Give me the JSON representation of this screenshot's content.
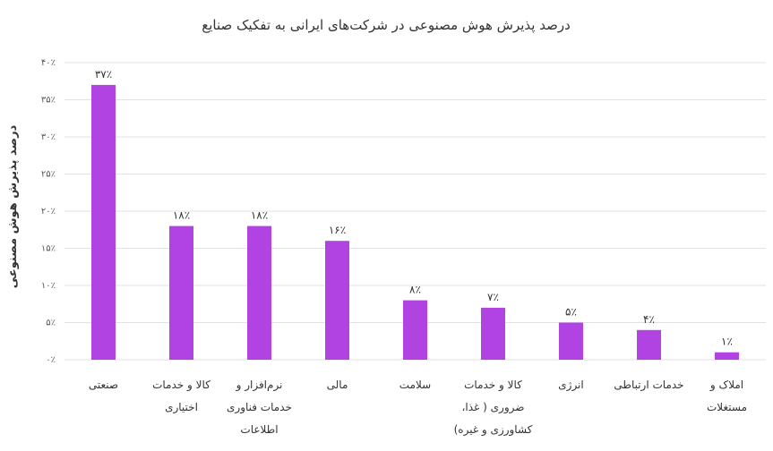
{
  "chart_data": {
    "type": "bar",
    "title": "درصد پذیرش هوش مصنوعی در شرکت‌های ایرانی به تفکیک صنایع",
    "xlabel": "",
    "ylabel": "درصد پذیرش هوش مصنوعی",
    "ylim": [
      0,
      40
    ],
    "yticks": [
      0,
      5,
      10,
      15,
      20,
      25,
      30,
      35,
      40
    ],
    "ytick_labels": [
      "۰٪",
      "۵٪",
      "۱۰٪",
      "۱۵٪",
      "۲۰٪",
      "۲۵٪",
      "۳۰٪",
      "۳۵٪",
      "۴۰٪"
    ],
    "grid": true,
    "bar_color": "#B243E3",
    "categories": [
      [
        "صنعتی"
      ],
      [
        "کالا و خدمات",
        "اختیاری"
      ],
      [
        "نرم‌افزار و",
        "خدمات فناوری",
        "اطلاعات"
      ],
      [
        "مالی"
      ],
      [
        "سلامت"
      ],
      [
        "کالا و خدمات",
        "ضروری ( غذا،",
        "کشاورزی و غیره)"
      ],
      [
        "انرژی"
      ],
      [
        "خدمات ارتباطی"
      ],
      [
        "املاک و",
        "مستغلات"
      ]
    ],
    "values": [
      37,
      18,
      18,
      16,
      8,
      7,
      5,
      4,
      1
    ],
    "data_labels": [
      "۳۷٪",
      "۱۸٪",
      "۱۸٪",
      "۱۶٪",
      "۸٪",
      "۷٪",
      "۵٪",
      "۴٪",
      "۱٪"
    ]
  }
}
